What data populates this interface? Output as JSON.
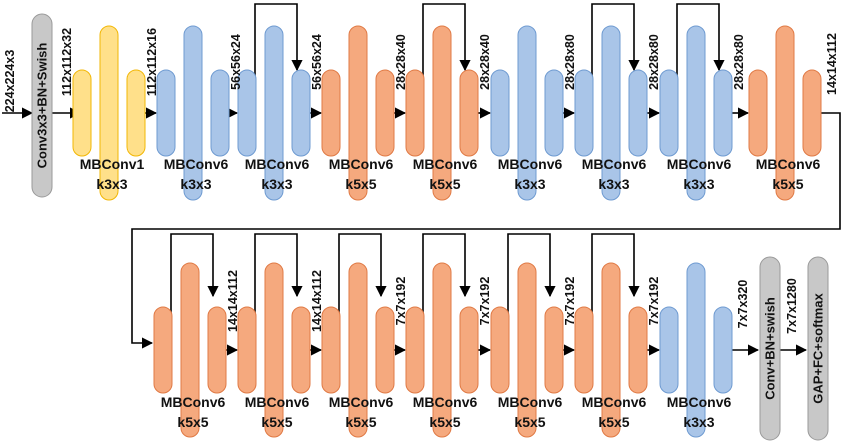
{
  "input_dim": "224x224x3",
  "stem": {
    "label": "Conv3x3+BN+Swish"
  },
  "head": {
    "label": "Conv+BN+swish"
  },
  "classifier": {
    "label": "GAP+FC+softmax"
  },
  "colors": {
    "yellow_fill": "#FFE08A",
    "yellow_stroke": "#F2B705",
    "blue_fill": "#A9C5E8",
    "blue_stroke": "#6F9BD1",
    "orange_fill": "#F5A97E",
    "orange_stroke": "#E07A45",
    "gray_fill": "#C8C8C8",
    "gray_stroke": "#9A9A9A"
  },
  "row1": [
    {
      "name": "MBConv1",
      "kernel": "k3x3",
      "color": "yellow",
      "skip": false,
      "out_dim": "112x112x16"
    },
    {
      "name": "MBConv6",
      "kernel": "k3x3",
      "color": "blue",
      "skip": false,
      "out_dim": "56x56x24"
    },
    {
      "name": "MBConv6",
      "kernel": "k3x3",
      "color": "blue",
      "skip": true,
      "out_dim": "56x56x24"
    },
    {
      "name": "MBConv6",
      "kernel": "k5x5",
      "color": "orange",
      "skip": false,
      "out_dim": "28x28x40"
    },
    {
      "name": "MBConv6",
      "kernel": "k5x5",
      "color": "orange",
      "skip": true,
      "out_dim": "28x28x40"
    },
    {
      "name": "MBConv6",
      "kernel": "k3x3",
      "color": "blue",
      "skip": false,
      "out_dim": "28x28x80"
    },
    {
      "name": "MBConv6",
      "kernel": "k3x3",
      "color": "blue",
      "skip": true,
      "out_dim": "28x28x80"
    },
    {
      "name": "MBConv6",
      "kernel": "k3x3",
      "color": "blue",
      "skip": true,
      "out_dim": "28x28x80"
    },
    {
      "name": "MBConv6",
      "kernel": "k5x5",
      "color": "orange",
      "skip": false,
      "out_dim": "14x14x112"
    }
  ],
  "stem_out_dim": "112x112x32",
  "row2": [
    {
      "name": "MBConv6",
      "kernel": "k5x5",
      "color": "orange",
      "skip": true,
      "out_dim": "14x14x112"
    },
    {
      "name": "MBConv6",
      "kernel": "k5x5",
      "color": "orange",
      "skip": true,
      "out_dim": "14x14x112"
    },
    {
      "name": "MBConv6",
      "kernel": "k5x5",
      "color": "orange",
      "skip": true,
      "out_dim": "7x7x192"
    },
    {
      "name": "MBConv6",
      "kernel": "k5x5",
      "color": "orange",
      "skip": true,
      "out_dim": "7x7x192"
    },
    {
      "name": "MBConv6",
      "kernel": "k5x5",
      "color": "orange",
      "skip": true,
      "out_dim": "7x7x192"
    },
    {
      "name": "MBConv6",
      "kernel": "k5x5",
      "color": "orange",
      "skip": true,
      "out_dim": "7x7x192"
    },
    {
      "name": "MBConv6",
      "kernel": "k3x3",
      "color": "blue",
      "skip": false,
      "out_dim": "7x7x320"
    }
  ],
  "head_out_dim": "7x7x1280"
}
